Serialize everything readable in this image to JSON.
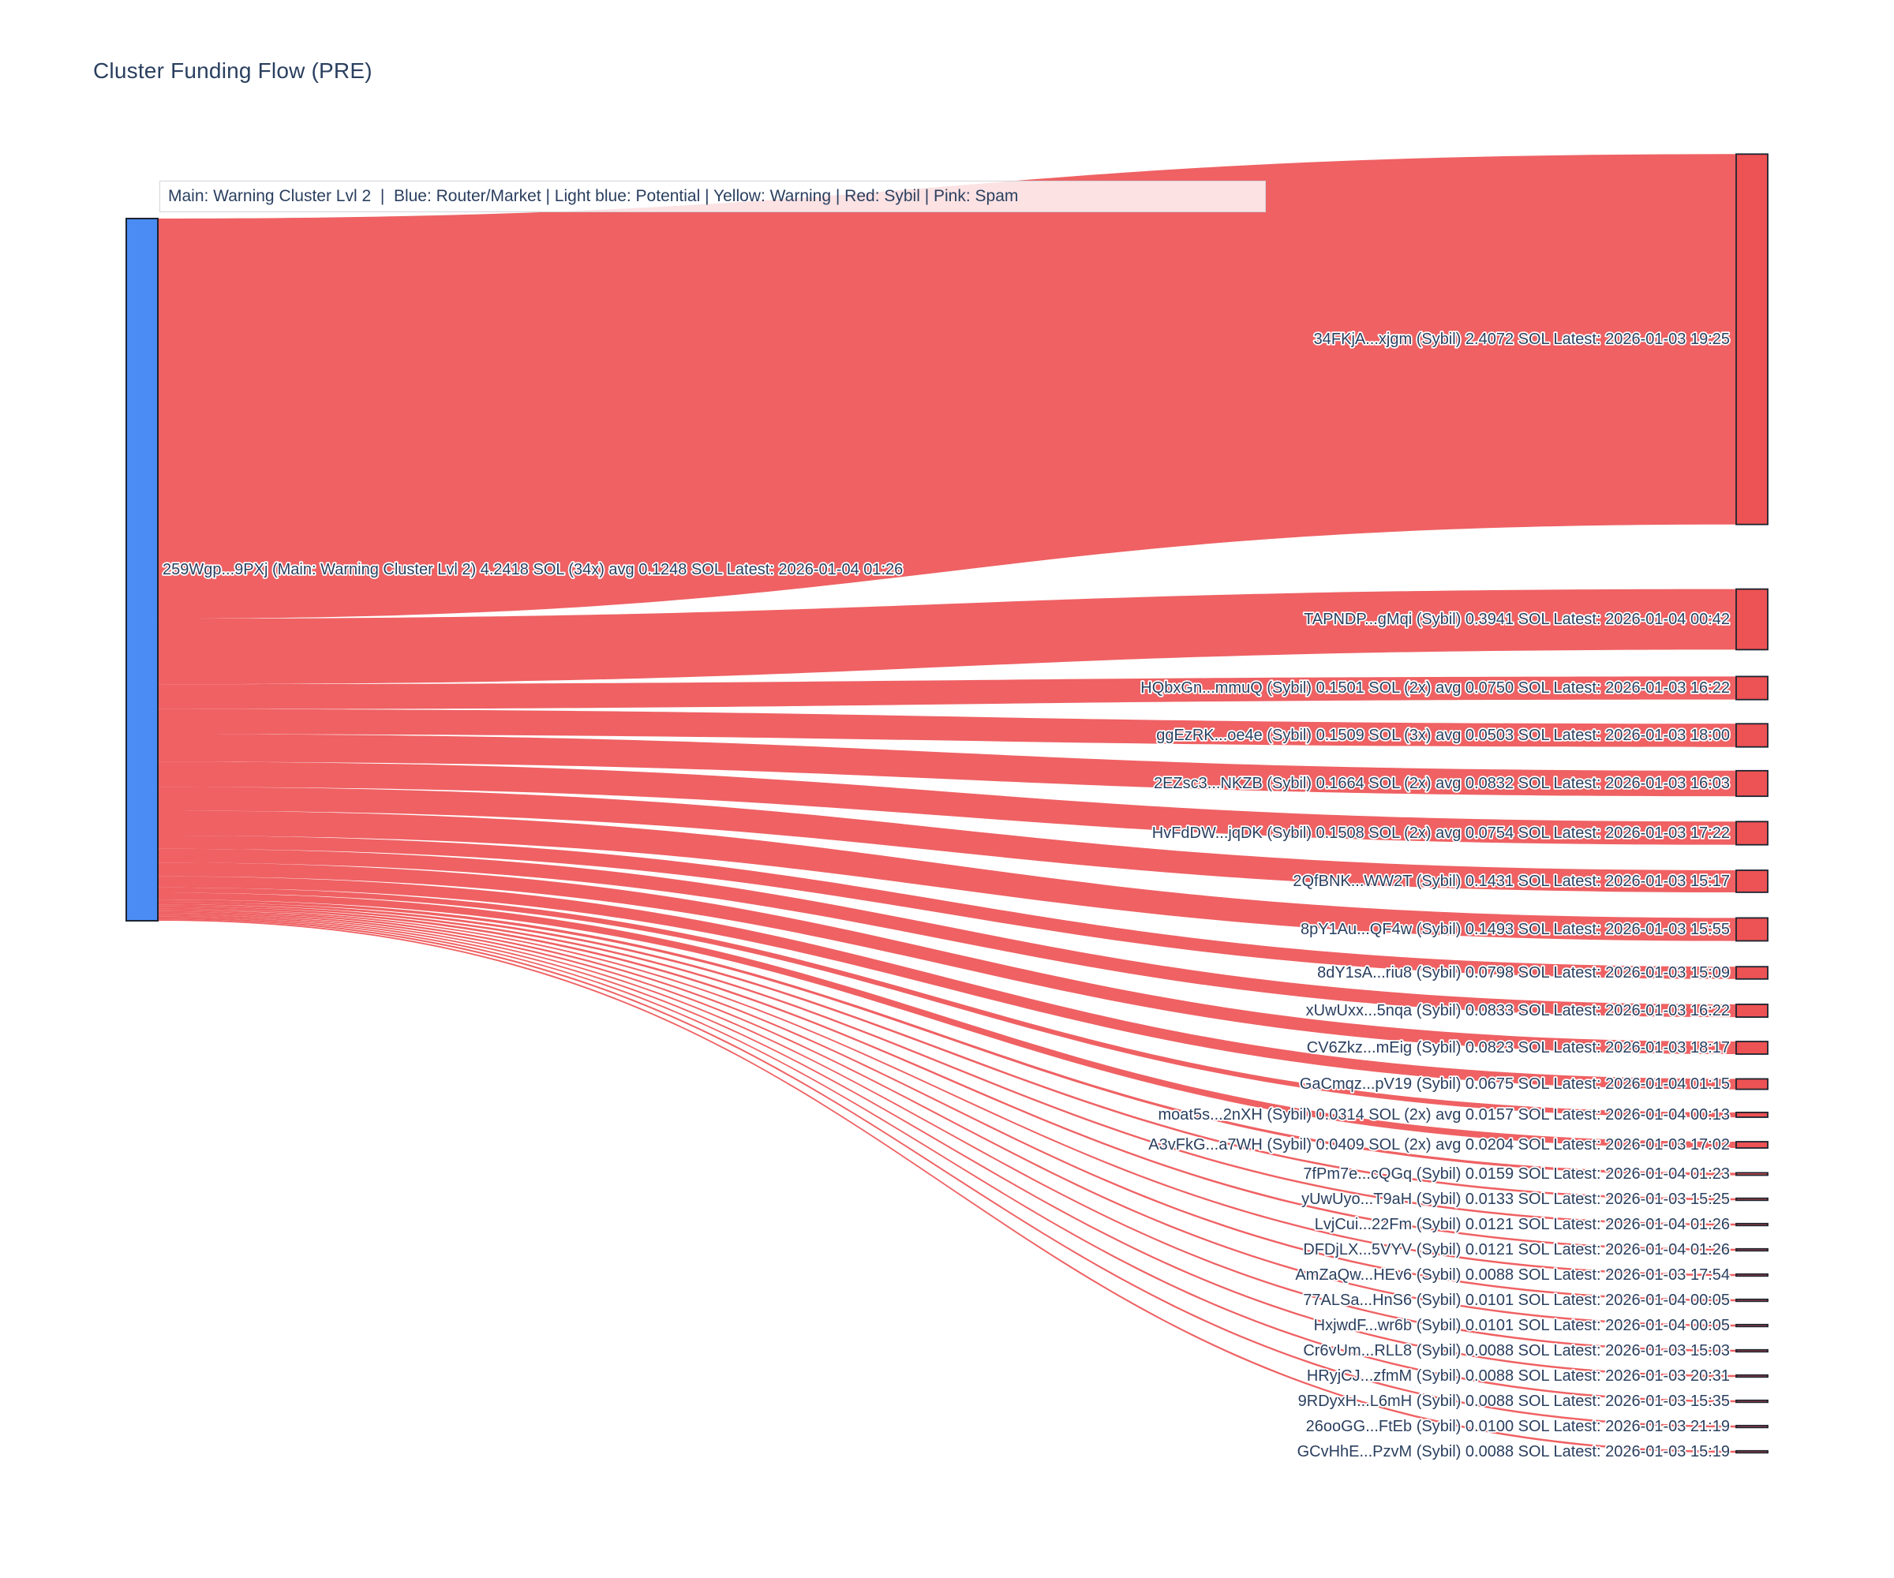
{
  "title": "Cluster Funding Flow (PRE)",
  "annotation": "Main: Warning Cluster Lvl 2  |  Blue: Router/Market | Light blue: Potential | Yellow: Warning | Red: Sybil | Pink: Spam",
  "legend_key": {
    "main": "Warning Cluster Lvl 2",
    "blue": "Router/Market",
    "light_blue": "Potential",
    "yellow": "Warning",
    "red": "Sybil",
    "pink": "Spam"
  },
  "colors": {
    "source_node": "#4a8cf4",
    "sybil_node": "#ed5254",
    "link": "#ee5557",
    "node_border": "#1c2430",
    "text": "#2a3f5f"
  },
  "chart_data": {
    "type": "sankey",
    "title": "Cluster Funding Flow (PRE)",
    "source_node": {
      "label": "259Wgp...9PXj (Main: Warning Cluster Lvl 2) 4.2418 SOL (34x) avg 0.1248 SOL Latest: 2026-01-04 01:26",
      "address": "259Wgp...9PXj",
      "cluster": "Main: Warning Cluster Lvl 2",
      "total_sol": 4.2418,
      "tx_count": "34x",
      "avg_sol": 0.1248,
      "latest": "2026-01-04 01:26"
    },
    "targets": [
      {
        "label": "34FKjA...xjgm (Sybil) 2.4072 SOL Latest: 2026-01-03 19:25",
        "value_sol": 2.4072,
        "latest": "2026-01-03 19:25"
      },
      {
        "label": "TAPNDP...gMqi (Sybil) 0.3941 SOL Latest: 2026-01-04 00:42",
        "value_sol": 0.3941,
        "latest": "2026-01-04 00:42"
      },
      {
        "label": "HQbxGn...mmuQ (Sybil) 0.1501 SOL (2x) avg 0.0750 SOL Latest: 2026-01-03 16:22",
        "value_sol": 0.1501,
        "latest": "2026-01-03 16:22"
      },
      {
        "label": "ggEzRK...oe4e (Sybil) 0.1509 SOL (3x) avg 0.0503 SOL Latest: 2026-01-03 18:00",
        "value_sol": 0.1509,
        "latest": "2026-01-03 18:00"
      },
      {
        "label": "2EZsc3...NKZB (Sybil) 0.1664 SOL (2x) avg 0.0832 SOL Latest: 2026-01-03 16:03",
        "value_sol": 0.1664,
        "latest": "2026-01-03 16:03"
      },
      {
        "label": "HvFdDW...jqDK (Sybil) 0.1508 SOL (2x) avg 0.0754 SOL Latest: 2026-01-03 17:22",
        "value_sol": 0.1508,
        "latest": "2026-01-03 17:22"
      },
      {
        "label": "2QfBNK...WW2T (Sybil) 0.1431 SOL Latest: 2026-01-03 15:17",
        "value_sol": 0.1431,
        "latest": "2026-01-03 15:17"
      },
      {
        "label": "8pY1Au...QF4w (Sybil) 0.1493 SOL Latest: 2026-01-03 15:55",
        "value_sol": 0.1493,
        "latest": "2026-01-03 15:55"
      },
      {
        "label": "8dY1sA...riu8 (Sybil) 0.0798 SOL Latest: 2026-01-03 15:09",
        "value_sol": 0.0798,
        "latest": "2026-01-03 15:09"
      },
      {
        "label": "xUwUxx...5nqa (Sybil) 0.0833 SOL Latest: 2026-01-03 16:22",
        "value_sol": 0.0833,
        "latest": "2026-01-03 16:22"
      },
      {
        "label": "CV6Zkz...mEig (Sybil) 0.0823 SOL Latest: 2026-01-03 18:17",
        "value_sol": 0.0823,
        "latest": "2026-01-03 18:17"
      },
      {
        "label": "GaCmqz...pV19 (Sybil) 0.0675 SOL Latest: 2026-01-04 01:15",
        "value_sol": 0.0675,
        "latest": "2026-01-04 01:15"
      },
      {
        "label": "moat5s...2nXH (Sybil) 0.0314 SOL (2x) avg 0.0157 SOL Latest: 2026-01-04 00:13",
        "value_sol": 0.0314,
        "latest": "2026-01-04 00:13"
      },
      {
        "label": "A3vFkG...a7WH (Sybil) 0.0409 SOL (2x) avg 0.0204 SOL Latest: 2026-01-03 17:02",
        "value_sol": 0.0409,
        "latest": "2026-01-03 17:02"
      },
      {
        "label": "7fPm7e...cQGq (Sybil) 0.0159 SOL Latest: 2026-01-04 01:23",
        "value_sol": 0.0159,
        "latest": "2026-01-04 01:23"
      },
      {
        "label": "yUwUyo...T9aH (Sybil) 0.0133 SOL Latest: 2026-01-03 15:25",
        "value_sol": 0.0133,
        "latest": "2026-01-03 15:25"
      },
      {
        "label": "LvjCui...22Fm (Sybil) 0.0121 SOL Latest: 2026-01-04 01:26",
        "value_sol": 0.0121,
        "latest": "2026-01-04 01:26"
      },
      {
        "label": "DFDjLX...5VYV (Sybil) 0.0121 SOL Latest: 2026-01-04 01:26",
        "value_sol": 0.0121,
        "latest": "2026-01-04 01:26"
      },
      {
        "label": "AmZaQw...HEv6 (Sybil) 0.0088 SOL Latest: 2026-01-03 17:54",
        "value_sol": 0.0088,
        "latest": "2026-01-03 17:54"
      },
      {
        "label": "77ALSa...HnS6 (Sybil) 0.0101 SOL Latest: 2026-01-04 00:05",
        "value_sol": 0.0101,
        "latest": "2026-01-04 00:05"
      },
      {
        "label": "HxjwdF...wr6b (Sybil) 0.0101 SOL Latest: 2026-01-04 00:05",
        "value_sol": 0.0101,
        "latest": "2026-01-04 00:05"
      },
      {
        "label": "Cr6vUm...RLL8 (Sybil) 0.0088 SOL Latest: 2026-01-03 15:03",
        "value_sol": 0.0088,
        "latest": "2026-01-03 15:03"
      },
      {
        "label": "HRyjCJ...zfmM (Sybil) 0.0088 SOL Latest: 2026-01-03 20:31",
        "value_sol": 0.0088,
        "latest": "2026-01-03 20:31"
      },
      {
        "label": "9RDyxH...L6mH (Sybil) 0.0088 SOL Latest: 2026-01-03 15:35",
        "value_sol": 0.0088,
        "latest": "2026-01-03 15:35"
      },
      {
        "label": "26ooGG...FtEb (Sybil) 0.0100 SOL Latest: 2026-01-03 21:19",
        "value_sol": 0.01,
        "latest": "2026-01-03 21:19"
      },
      {
        "label": "GCvHhE...PzvM (Sybil) 0.0088 SOL Latest: 2026-01-03 15:19",
        "value_sol": 0.0088,
        "latest": "2026-01-03 15:19"
      }
    ]
  }
}
